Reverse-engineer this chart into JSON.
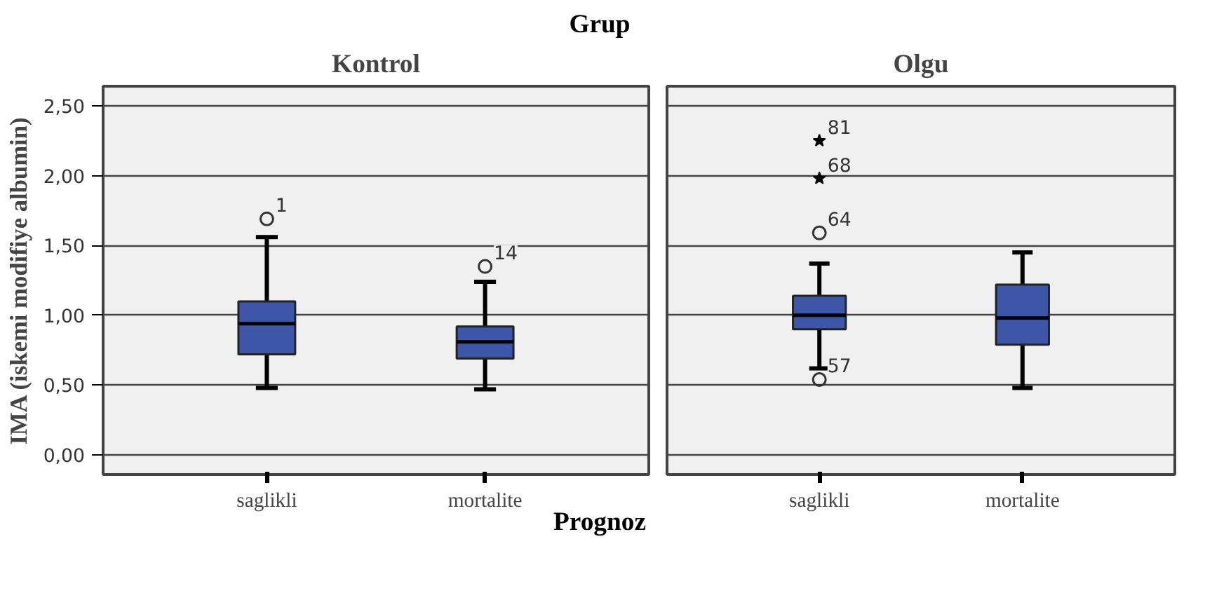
{
  "chart_data": [
    {
      "type": "box",
      "title": "Kontrol",
      "ylabel": "IMA (iskemi modifiye albumin)",
      "xlabel": "Prognoz",
      "categories": [
        "saglikli",
        "mortalite"
      ],
      "color": "#3d56a8",
      "grid": "y",
      "ylim": [
        -0.14,
        2.64
      ],
      "yticks": [
        {
          "value": 0,
          "label": "0,00"
        },
        {
          "value": 0.5,
          "label": "0,50"
        },
        {
          "value": 1,
          "label": "1,00"
        },
        {
          "value": 1.5,
          "label": "1,50"
        },
        {
          "value": 2,
          "label": "2,00"
        },
        {
          "value": 2.5,
          "label": "2,50"
        }
      ],
      "boxes": [
        {
          "low": 0.48,
          "q1": 0.72,
          "median": 0.94,
          "q3": 1.1,
          "high": 1.56,
          "outliers": [
            1.69
          ]
        },
        {
          "low": 0.47,
          "q1": 0.69,
          "median": 0.81,
          "q3": 0.92,
          "high": 1.24,
          "outliers": [
            1.35
          ]
        }
      ],
      "annotations": [
        "Grup",
        "1",
        "14"
      ]
    },
    {
      "type": "box",
      "title": "Olgu",
      "categories": [
        "saglikli",
        "mortalite"
      ],
      "color": "#3d56a8",
      "grid": "y",
      "tick_labels": "x",
      "ylim": [
        -0.14,
        2.64
      ],
      "yticks": [
        0,
        0.5,
        1,
        1.5,
        2,
        2.5
      ],
      "boxes": [
        {
          "low": 0.62,
          "q1": 0.9,
          "median": 1.0,
          "q3": 1.14,
          "high": 1.37,
          "outliers": [
            2.25,
            1.98,
            1.59,
            0.54
          ]
        },
        {
          "low": 0.48,
          "q1": 0.79,
          "median": 0.98,
          "q3": 1.22,
          "high": 1.45
        }
      ],
      "annotations": [
        "81",
        "68",
        "64",
        "57"
      ]
    }
  ]
}
